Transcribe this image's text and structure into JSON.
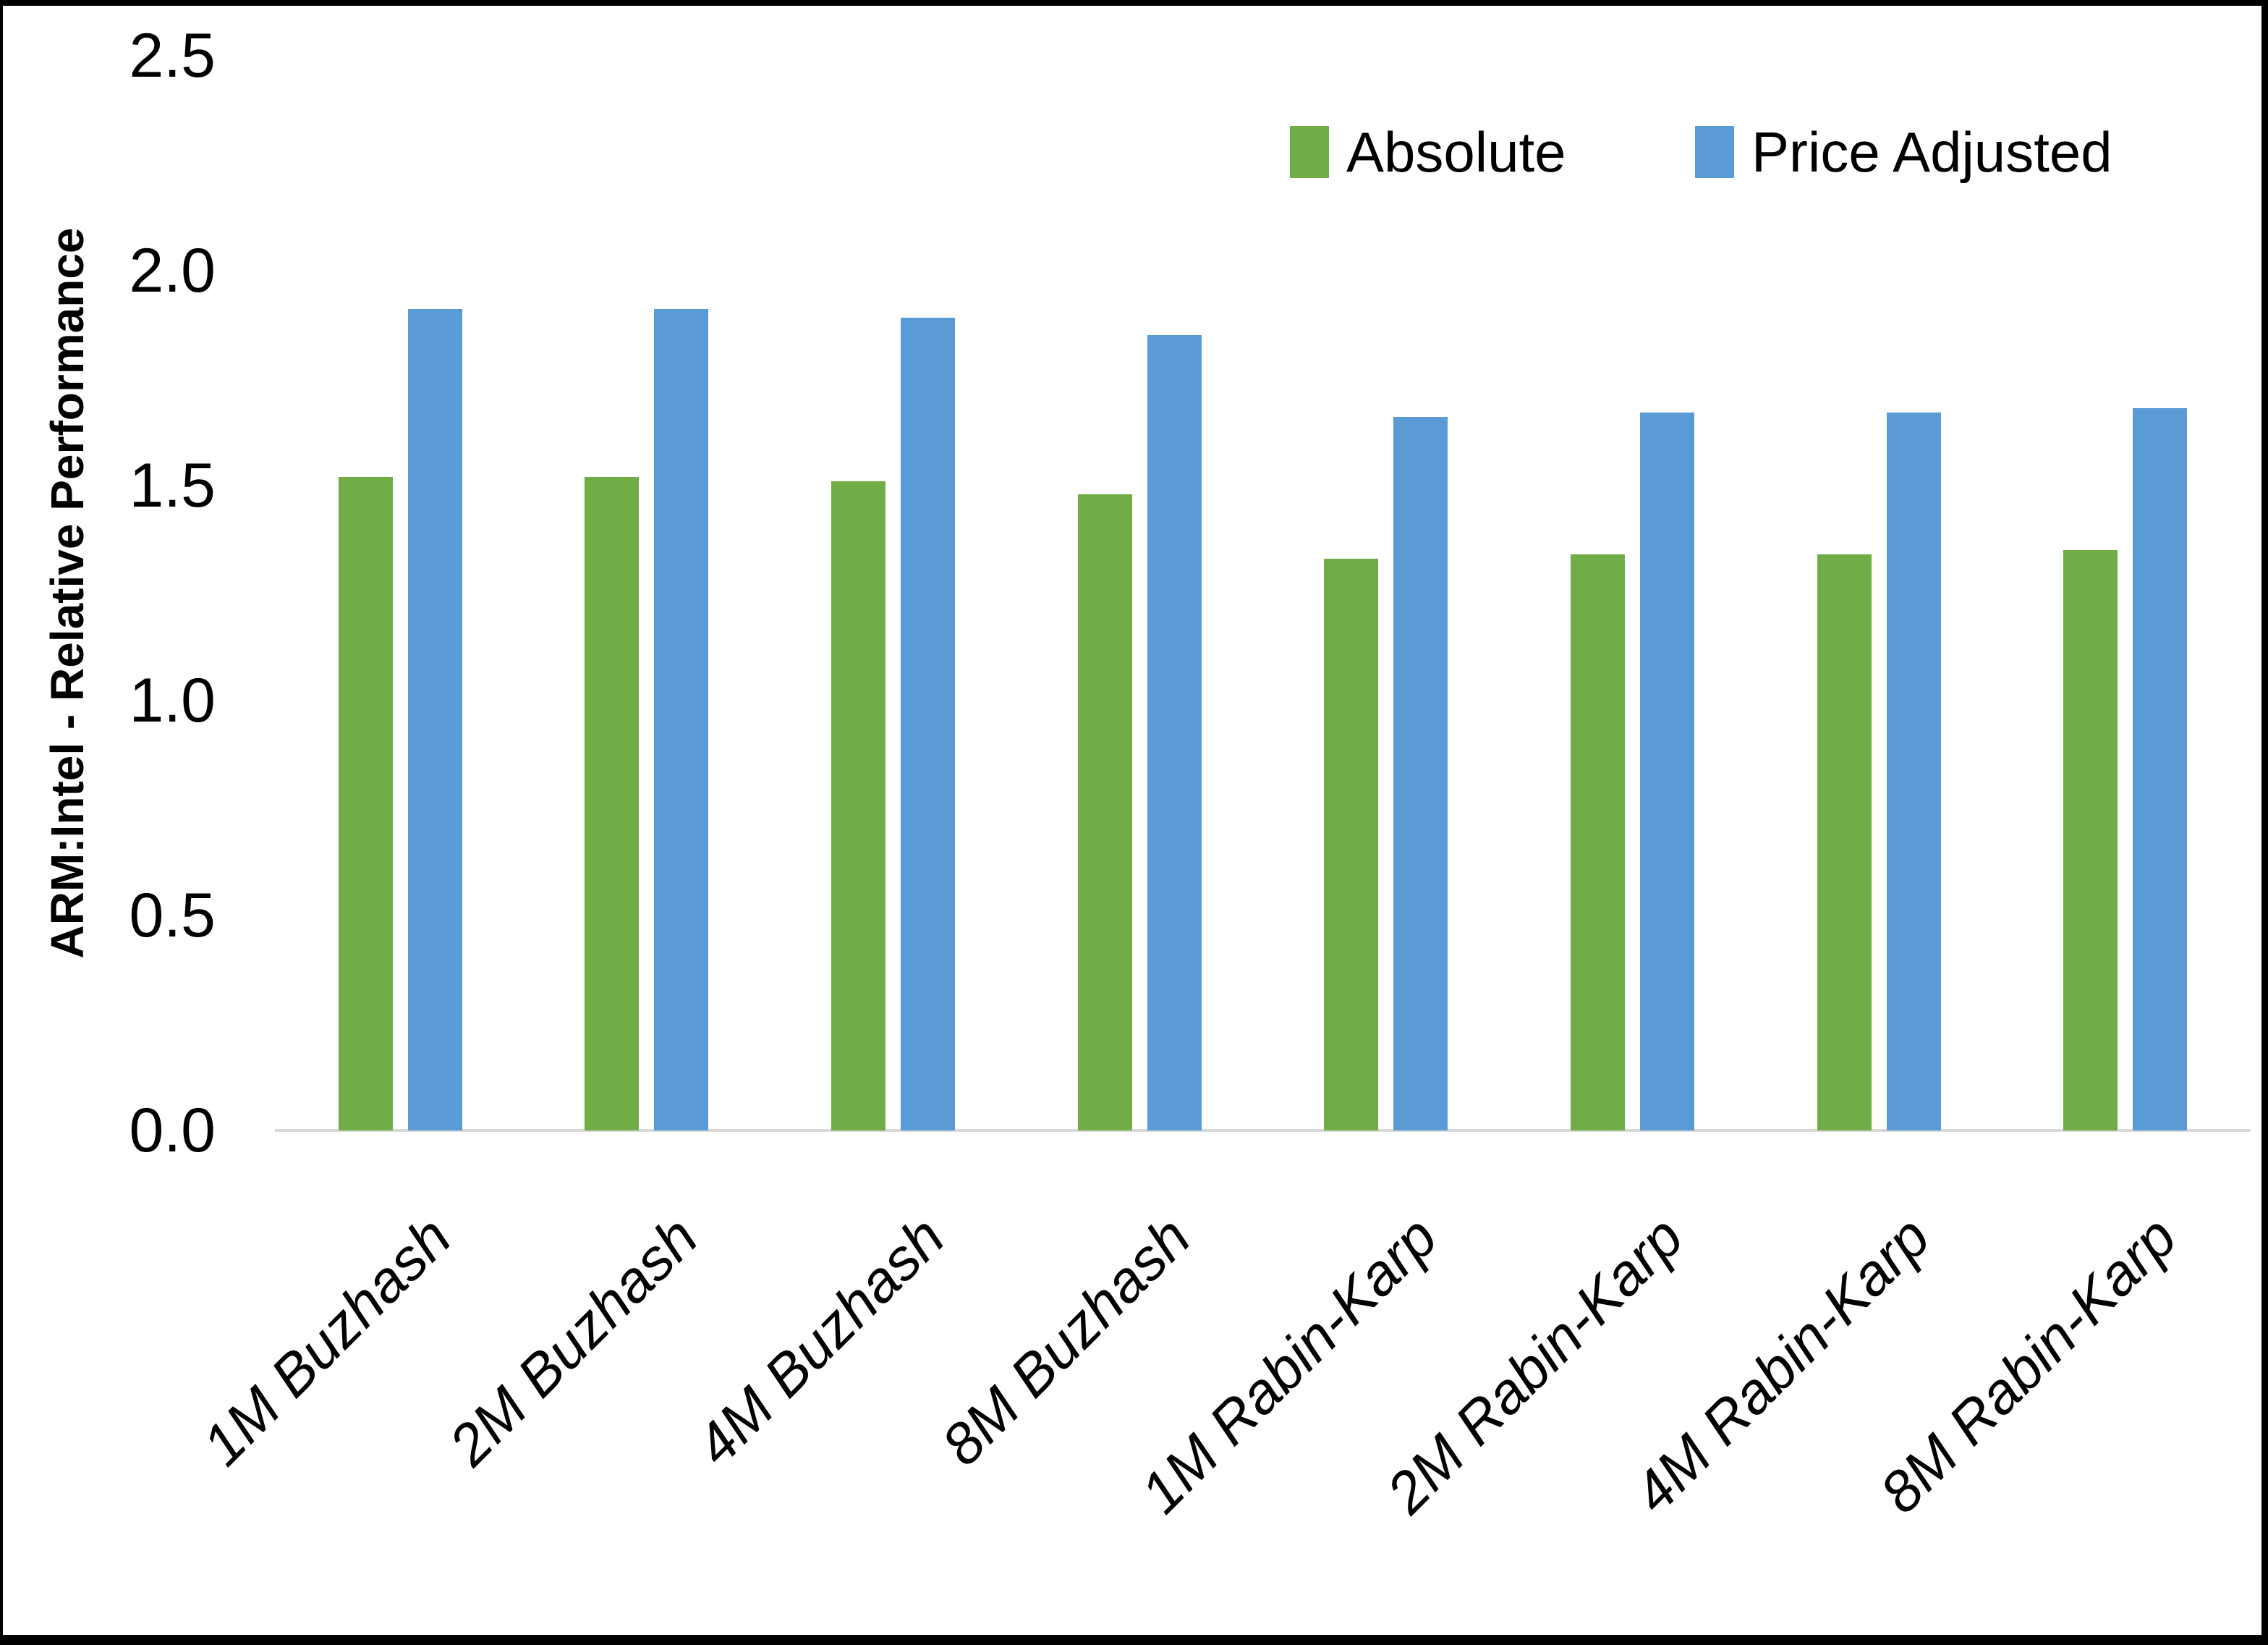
{
  "chart_data": {
    "type": "bar",
    "title": "",
    "ylabel": "ARM:Intel - Relative Performance",
    "xlabel": "",
    "categories": [
      "1M Buzhash",
      "2M Buzhash",
      "4M Buzhash",
      "8M Buzhash",
      "1M Rabin-Karp",
      "2M Rabin-Karp",
      "4M Rabin-Karp",
      "8M Rabin-Karp"
    ],
    "series": [
      {
        "name": "Absolute",
        "color": "#70AD47",
        "values": [
          1.52,
          1.52,
          1.51,
          1.48,
          1.33,
          1.34,
          1.34,
          1.35
        ]
      },
      {
        "name": "Price Adjusted",
        "color": "#5B9BD5",
        "values": [
          1.91,
          1.91,
          1.89,
          1.85,
          1.66,
          1.67,
          1.67,
          1.68
        ]
      }
    ],
    "ylim": [
      0,
      2.5
    ],
    "yticks": [
      "0.0",
      "0.5",
      "1.0",
      "1.5",
      "2.0",
      "2.5"
    ],
    "grid": false,
    "legend_position": "top-right",
    "axis_line_color": "#D9D9D9",
    "frame_color": "#000000",
    "background": "#FFFFFF"
  }
}
